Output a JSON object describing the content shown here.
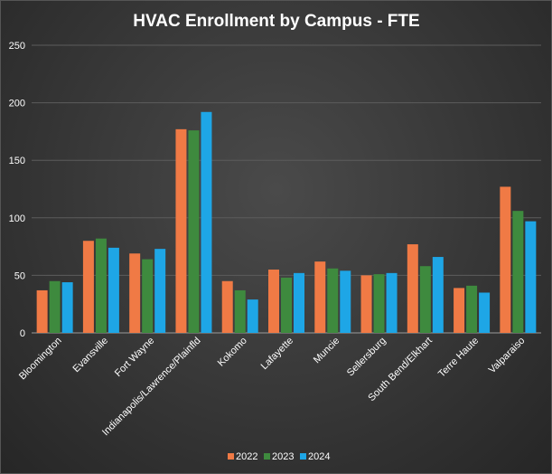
{
  "chart_data": {
    "type": "bar",
    "title": "HVAC Enrollment by Campus - FTE",
    "categories": [
      "Bloomington",
      "Evansville",
      "Fort Wayne",
      "Indianapolis/Lawrence/Plainfld",
      "Kokomo",
      "Lafayette",
      "Muncie",
      "Sellersburg",
      "South Bend/Elkhart",
      "Terre Haute",
      "Valparaiso"
    ],
    "series": [
      {
        "name": "2022",
        "color": "#f07a45",
        "values": [
          37,
          80,
          69,
          177,
          45,
          55,
          62,
          50,
          77,
          39,
          127
        ]
      },
      {
        "name": "2023",
        "color": "#3e8a3e",
        "values": [
          45,
          82,
          64,
          176,
          37,
          48,
          56,
          51,
          58,
          41,
          106
        ]
      },
      {
        "name": "2024",
        "color": "#1ea6e6",
        "values": [
          44,
          74,
          73,
          192,
          29,
          52,
          54,
          52,
          66,
          35,
          97
        ]
      }
    ],
    "ylim": [
      0,
      250
    ],
    "yticks": [
      0,
      50,
      100,
      150,
      200,
      250
    ],
    "grid": true,
    "legend": "bottom"
  }
}
